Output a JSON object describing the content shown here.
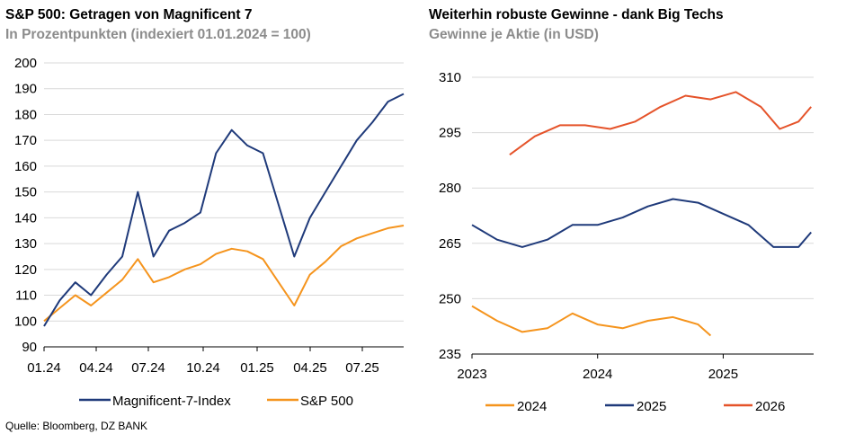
{
  "source": "Quelle: Bloomberg, DZ BANK",
  "chart_data": [
    {
      "type": "line",
      "title": "S&P 500: Getragen von Magnificent 7",
      "subtitle": "In Prozentpunkten (indexiert 01.01.2024 = 100)",
      "xlabel": "",
      "ylabel": "",
      "ylim": [
        90,
        200
      ],
      "yticks": [
        "90",
        "100",
        "110",
        "120",
        "130",
        "140",
        "150",
        "160",
        "170",
        "180",
        "190",
        "200"
      ],
      "xticks": [
        "01.24",
        "04.24",
        "07.24",
        "10.24",
        "01.25",
        "04.25",
        "07.25"
      ],
      "grid": true,
      "legend_position": "bottom",
      "x": [
        "01.24",
        "02.24",
        "03.24",
        "04.24",
        "05.24",
        "06.24",
        "07.24",
        "07.24",
        "08.24",
        "09.24",
        "10.24",
        "11.24",
        "12.24",
        "01.25",
        "02.25",
        "03.25",
        "04.25",
        "04.25",
        "05.25",
        "06.25",
        "07.25",
        "08.25",
        "09.25",
        "10.25"
      ],
      "series": [
        {
          "name": "Magnificent-7-Index",
          "color": "#1f3a7a",
          "values": [
            98,
            108,
            115,
            110,
            118,
            125,
            150,
            125,
            135,
            138,
            142,
            165,
            174,
            168,
            165,
            145,
            125,
            140,
            150,
            160,
            170,
            177,
            185,
            188
          ]
        },
        {
          "name": "S&P 500",
          "color": "#f5941d",
          "values": [
            100,
            105,
            110,
            106,
            111,
            116,
            124,
            115,
            117,
            120,
            122,
            126,
            128,
            127,
            124,
            115,
            106,
            118,
            123,
            129,
            132,
            134,
            136,
            137
          ]
        }
      ],
      "legend": [
        "Magnificent-7-Index",
        "S&P 500"
      ]
    },
    {
      "type": "line",
      "title": "Weiterhin robuste Gewinne - dank Big Techs",
      "subtitle": "Gewinne je Aktie (in USD)",
      "xlabel": "",
      "ylabel": "",
      "ylim": [
        235,
        310
      ],
      "yticks": [
        "235",
        "250",
        "265",
        "280",
        "295",
        "310"
      ],
      "xticks": [
        "2023",
        "2024",
        "2025"
      ],
      "grid": true,
      "legend_position": "bottom",
      "series": [
        {
          "name": "2024",
          "color": "#f5941d",
          "x": [
            2023.0,
            2023.2,
            2023.4,
            2023.6,
            2023.8,
            2024.0,
            2024.2,
            2024.4,
            2024.6,
            2024.8,
            2024.9
          ],
          "values": [
            248,
            244,
            241,
            242,
            246,
            243,
            242,
            244,
            245,
            243,
            240
          ]
        },
        {
          "name": "2025",
          "color": "#1f3a7a",
          "x": [
            2023.0,
            2023.2,
            2023.4,
            2023.6,
            2023.8,
            2024.0,
            2024.2,
            2024.4,
            2024.6,
            2024.8,
            2025.0,
            2025.2,
            2025.4,
            2025.6,
            2025.7
          ],
          "values": [
            270,
            266,
            264,
            266,
            270,
            270,
            272,
            275,
            277,
            276,
            273,
            270,
            264,
            264,
            268
          ]
        },
        {
          "name": "2026",
          "color": "#e5532a",
          "x": [
            2023.3,
            2023.5,
            2023.7,
            2023.9,
            2024.1,
            2024.3,
            2024.5,
            2024.7,
            2024.9,
            2025.1,
            2025.3,
            2025.45,
            2025.6,
            2025.7
          ],
          "values": [
            289,
            294,
            297,
            297,
            296,
            298,
            302,
            305,
            304,
            306,
            302,
            296,
            298,
            302
          ]
        }
      ],
      "legend": [
        "2024",
        "2025",
        "2026"
      ]
    }
  ]
}
